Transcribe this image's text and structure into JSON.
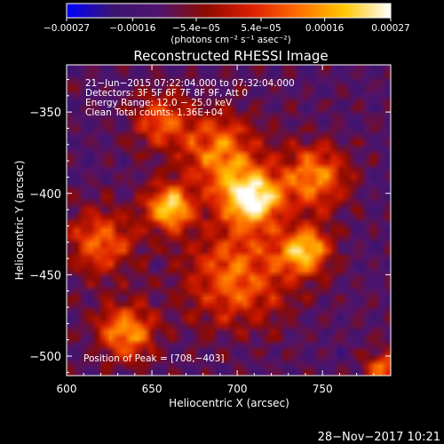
{
  "chart_data": {
    "type": "heatmap",
    "title": "Reconstructed RHESSI Image",
    "xlabel": "Heliocentric X (arcsec)",
    "ylabel": "Heliocentric Y (arcsec)",
    "xlim": [
      600,
      790
    ],
    "ylim": [
      -512,
      -321
    ],
    "x_ticks": [
      "600",
      "650",
      "700",
      "750"
    ],
    "x_tick_values": [
      600,
      650,
      700,
      750
    ],
    "y_ticks": [
      "−350",
      "−400",
      "−450",
      "−500"
    ],
    "y_tick_values": [
      -350,
      -400,
      -450,
      -500
    ],
    "colorbar": {
      "min": -0.00027,
      "max": 0.00027,
      "tick_labels": [
        "−0.00027",
        "−0.00016",
        "−5.4e−05",
        "5.4e−05",
        "0.00016",
        "0.00027"
      ],
      "tick_values": [
        -0.00027,
        -0.00016,
        -5.4e-05,
        5.4e-05,
        0.00016,
        0.00027
      ],
      "units_label": "(photons cm⁻² s⁻¹ asec⁻²)",
      "colormap": [
        "#0000ff",
        "#3a1470",
        "#50146e",
        "#8c0a00",
        "#dc1e00",
        "#ff6e00",
        "#ffc800",
        "#ffffff"
      ]
    },
    "annotations": [
      "21−Jun−2015 07:22:04.000 to 07:32:04.000",
      "Detectors: 3F 5F 6F 7F 8F 9F, Att 0",
      "Energy Range: 12.0 − 25.0 keV",
      "Clean     Total counts: 1.36E+04"
    ],
    "peak_label": "Position of Peak = [708,−403]",
    "peak": [
      708,
      -403
    ],
    "sources": [
      {
        "x": 708,
        "y": -403,
        "peak": 0.00027,
        "sigma": 12
      },
      {
        "x": 660,
        "y": -408,
        "peak": 0.00021,
        "sigma": 10
      },
      {
        "x": 740,
        "y": -435,
        "peak": 0.0002,
        "sigma": 10
      },
      {
        "x": 745,
        "y": -390,
        "peak": 0.00014,
        "sigma": 14
      },
      {
        "x": 690,
        "y": -375,
        "peak": 0.00013,
        "sigma": 16
      },
      {
        "x": 635,
        "y": -485,
        "peak": 0.00016,
        "sigma": 12
      },
      {
        "x": 700,
        "y": -450,
        "peak": 0.00011,
        "sigma": 22
      },
      {
        "x": 620,
        "y": -430,
        "peak": 0.0001,
        "sigma": 14
      },
      {
        "x": 785,
        "y": -508,
        "peak": 0.00013,
        "sigma": 7
      },
      {
        "x": 655,
        "y": -355,
        "peak": 8e-05,
        "sigma": 12
      }
    ]
  },
  "footer": {
    "timestamp": "28−Nov−2017 10:21"
  }
}
